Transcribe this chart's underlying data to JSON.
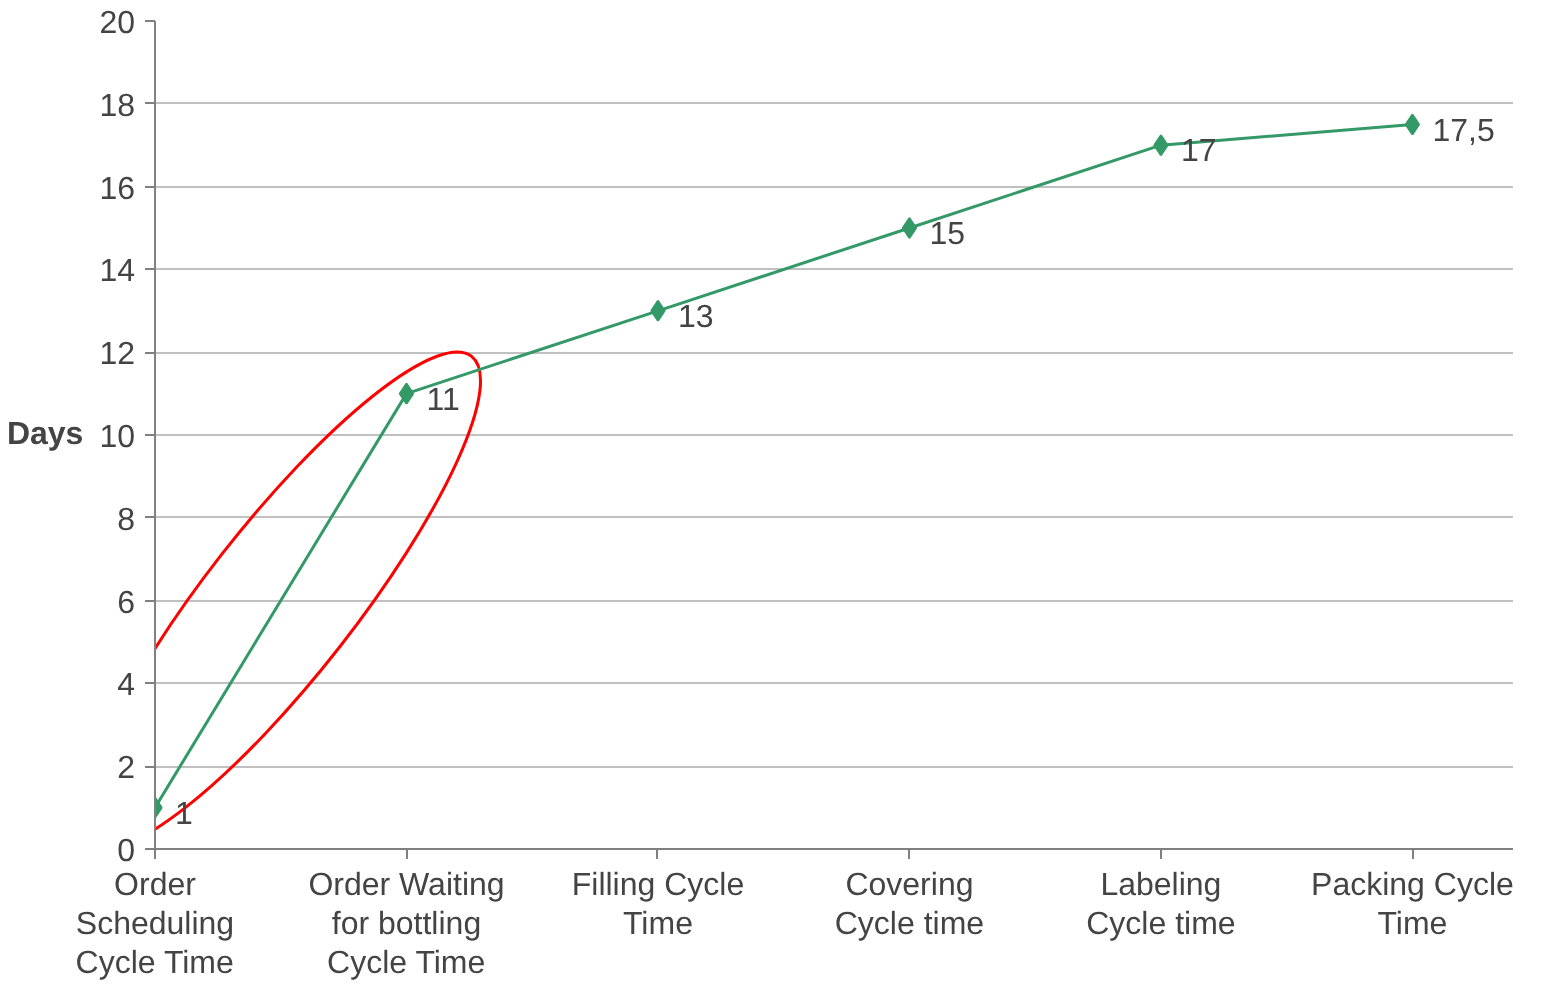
{
  "chart_data": {
    "type": "line",
    "ylabel": "Days",
    "categories": [
      "Order Scheduling Cycle Time",
      "Order Waiting for bottling Cycle Time",
      "Filling Cycle Time",
      "Covering Cycle time",
      "Labeling Cycle time",
      "Packing Cycle Time"
    ],
    "series": [
      {
        "color": "#339966",
        "values": [
          1,
          11,
          13,
          15,
          17,
          17.5
        ]
      }
    ],
    "value_labels": [
      "1",
      "11",
      "13",
      "15",
      "17",
      "17,5"
    ],
    "ylim": [
      0,
      20
    ],
    "yticks": [
      0,
      2,
      4,
      6,
      8,
      10,
      12,
      14,
      16,
      18,
      20
    ],
    "grid": "y",
    "marker": "diamond",
    "line_style": "solid"
  }
}
